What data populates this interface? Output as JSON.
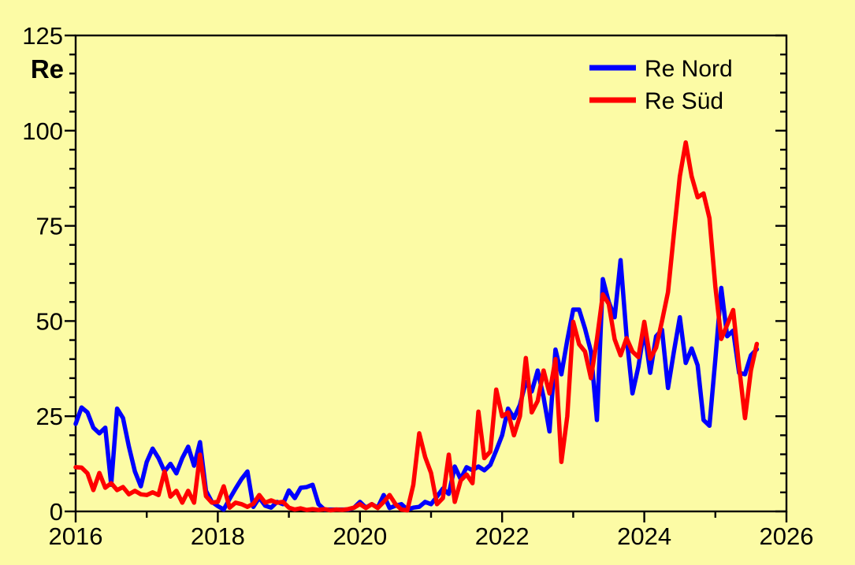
{
  "chart_data": {
    "type": "line",
    "title": "",
    "ylabel": "Re",
    "background_color": "#fcfba5",
    "axis_color": "#000000",
    "grid": false,
    "x_axis": {
      "min": 2016,
      "max": 2026,
      "major_ticks": [
        2016,
        2018,
        2020,
        2022,
        2024,
        2026
      ],
      "minor_step": 1,
      "labels": [
        "2016",
        "2018",
        "2020",
        "2022",
        "2024",
        "2026"
      ]
    },
    "y_axis": {
      "min": 0,
      "max": 125,
      "major_ticks": [
        0,
        25,
        50,
        75,
        100,
        125
      ],
      "minor_step": 5,
      "labels": [
        "0",
        "25",
        "50",
        "75",
        "100",
        "125"
      ]
    },
    "legend": {
      "position": "top-right",
      "entries": [
        {
          "label": "Re Nord",
          "color": "#0000ff"
        },
        {
          "label": "Re Süd",
          "color": "#ff0000"
        }
      ]
    },
    "series": [
      {
        "name": "Re Nord",
        "color": "#0000ff",
        "start_year": 2016,
        "interval_months": 1,
        "values": [
          23,
          27.3,
          26,
          22,
          20.5,
          22,
          7,
          27,
          24.5,
          17,
          10.5,
          6.6,
          13,
          16.5,
          14,
          10.5,
          12.5,
          10,
          14,
          17,
          12,
          18.2,
          5.4,
          2.5,
          1.4,
          0.5,
          3.3,
          6,
          8.5,
          10.5,
          1.2,
          3.6,
          1.5,
          1,
          2.5,
          1.9,
          5.5,
          3.5,
          6.2,
          6.4,
          7,
          1.9,
          0.5,
          0.5,
          0.5,
          0.5,
          0.5,
          1,
          2.5,
          1,
          1.9,
          1,
          4.3,
          0.9,
          1.5,
          1.9,
          0.5,
          1,
          1.2,
          2.5,
          1.9,
          3.9,
          6,
          4.6,
          11.8,
          8.5,
          11.6,
          10.8,
          11.8,
          10.8,
          12.2,
          16,
          20,
          27,
          24.5,
          28,
          34,
          31.5,
          37,
          30,
          21,
          42.5,
          36,
          45,
          53,
          53,
          48,
          42,
          24,
          61,
          55,
          51,
          66,
          46,
          31,
          38,
          47.7,
          36.4,
          46,
          47.7,
          32.4,
          42,
          51,
          39,
          42.8,
          38.4,
          24,
          22.5,
          40,
          58.7,
          46,
          47.5,
          36.4,
          36,
          41,
          42.6
        ]
      },
      {
        "name": "Re Süd",
        "color": "#ff0000",
        "start_year": 2016,
        "interval_months": 1,
        "values": [
          11.6,
          11.5,
          10,
          5.6,
          10.1,
          6.2,
          7.4,
          5.6,
          6.4,
          4.5,
          5.4,
          4.5,
          4.3,
          5,
          4.3,
          10.5,
          3.9,
          5.4,
          2.3,
          5.4,
          2.3,
          14.9,
          4,
          2.3,
          2.5,
          6.6,
          1,
          2.3,
          1.9,
          1.2,
          2,
          4.3,
          2.3,
          2.9,
          2.3,
          2.5,
          1,
          0.5,
          0.8,
          0.4,
          0.6,
          0.4,
          0.6,
          0.3,
          0.5,
          0.4,
          0.6,
          1,
          1.9,
          0.9,
          1.9,
          0.9,
          2.5,
          4.3,
          1.9,
          0.5,
          0.3,
          7,
          20.5,
          14.3,
          10.1,
          1.9,
          3.5,
          14.9,
          2.5,
          8.1,
          9.7,
          7.4,
          26.2,
          14,
          15.7,
          32,
          25,
          26,
          20,
          25,
          40.3,
          26,
          29,
          37,
          31,
          40,
          13,
          25,
          49.8,
          43.9,
          42,
          35,
          45.2,
          57,
          54.5,
          45.2,
          41,
          45.5,
          42,
          40.5,
          49.8,
          40.1,
          43,
          50,
          57.6,
          73,
          88,
          96.9,
          88,
          82.5,
          83.5,
          77,
          59,
          45.3,
          49,
          52.9,
          38,
          24.5,
          37,
          44
        ]
      }
    ]
  }
}
